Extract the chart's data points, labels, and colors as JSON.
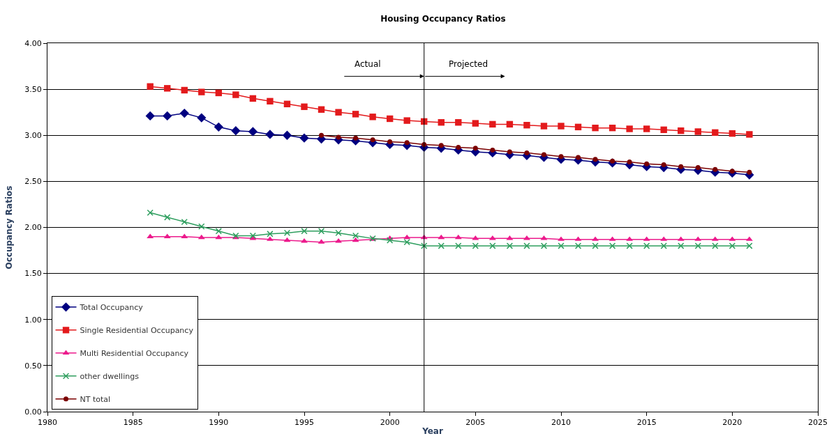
{
  "chart_data": {
    "type": "line",
    "title": "Housing Occupancy Ratios",
    "xlabel": "Year",
    "ylabel": "Occupancy Ratios",
    "x": [
      1986,
      1987,
      1988,
      1989,
      1990,
      1991,
      1992,
      1993,
      1994,
      1995,
      1996,
      1997,
      1998,
      1999,
      2000,
      2001,
      2002,
      2003,
      2004,
      2005,
      2006,
      2007,
      2008,
      2009,
      2010,
      2011,
      2012,
      2013,
      2014,
      2015,
      2016,
      2017,
      2018,
      2019,
      2020,
      2021
    ],
    "series": [
      {
        "name": "Total Occupancy",
        "color": "#000080",
        "marker": "diamond",
        "values": [
          3.21,
          3.21,
          3.24,
          3.19,
          3.09,
          3.05,
          3.04,
          3.01,
          3.0,
          2.97,
          2.96,
          2.95,
          2.94,
          2.92,
          2.9,
          2.89,
          2.87,
          2.86,
          2.84,
          2.82,
          2.81,
          2.79,
          2.78,
          2.76,
          2.74,
          2.73,
          2.71,
          2.7,
          2.68,
          2.66,
          2.65,
          2.63,
          2.62,
          2.6,
          2.59,
          2.57
        ]
      },
      {
        "name": "Single Residential Occupancy",
        "color": "#e31a1c",
        "marker": "square",
        "values": [
          3.53,
          3.51,
          3.49,
          3.47,
          3.46,
          3.44,
          3.4,
          3.37,
          3.34,
          3.31,
          3.28,
          3.25,
          3.23,
          3.2,
          3.18,
          3.16,
          3.15,
          3.14,
          3.14,
          3.13,
          3.12,
          3.12,
          3.11,
          3.1,
          3.1,
          3.09,
          3.08,
          3.08,
          3.07,
          3.07,
          3.06,
          3.05,
          3.04,
          3.03,
          3.02,
          3.01
        ]
      },
      {
        "name": "Multi Residential Occupancy",
        "color": "#ec1a8c",
        "marker": "triangle",
        "values": [
          1.9,
          1.9,
          1.9,
          1.89,
          1.89,
          1.89,
          1.88,
          1.87,
          1.86,
          1.85,
          1.84,
          1.85,
          1.86,
          1.87,
          1.88,
          1.89,
          1.89,
          1.89,
          1.89,
          1.88,
          1.88,
          1.88,
          1.88,
          1.88,
          1.87,
          1.87,
          1.87,
          1.87,
          1.87,
          1.87,
          1.87,
          1.87,
          1.87,
          1.87,
          1.87,
          1.87
        ]
      },
      {
        "name": "other dwellings",
        "color": "#2e9e5e",
        "marker": "cross",
        "values": [
          2.16,
          2.11,
          2.06,
          2.01,
          1.96,
          1.91,
          1.91,
          1.93,
          1.94,
          1.96,
          1.96,
          1.94,
          1.91,
          1.88,
          1.86,
          1.84,
          1.8,
          1.8,
          1.8,
          1.8,
          1.8,
          1.8,
          1.8,
          1.8,
          1.8,
          1.8,
          1.8,
          1.8,
          1.8,
          1.8,
          1.8,
          1.8,
          1.8,
          1.8,
          1.8,
          1.8
        ]
      },
      {
        "name": "NT total",
        "color": "#7b0000",
        "marker": "circle",
        "values": [
          null,
          null,
          null,
          null,
          null,
          null,
          null,
          null,
          null,
          null,
          3.0,
          2.98,
          2.97,
          2.95,
          2.93,
          2.92,
          2.9,
          2.89,
          2.87,
          2.86,
          2.84,
          2.82,
          2.81,
          2.79,
          2.77,
          2.76,
          2.74,
          2.72,
          2.71,
          2.69,
          2.68,
          2.66,
          2.65,
          2.63,
          2.61,
          2.6
        ]
      }
    ],
    "xlim": [
      1980,
      2025
    ],
    "xticks": [
      1980,
      1985,
      1990,
      1995,
      2000,
      2005,
      2010,
      2015,
      2020,
      2025
    ],
    "ylim": [
      0,
      4
    ],
    "yticks": [
      {
        "value": 0,
        "label": "0.00"
      },
      {
        "value": 0.5,
        "label": "0.50"
      },
      {
        "value": 1,
        "label": "1.00"
      },
      {
        "value": 1.5,
        "label": "1.50"
      },
      {
        "value": 2,
        "label": "2.00"
      },
      {
        "value": 2.5,
        "label": "2.50"
      },
      {
        "value": 3,
        "label": "3.00"
      },
      {
        "value": 3.5,
        "label": "3.50"
      },
      {
        "value": 4,
        "label": "4.00"
      }
    ],
    "ref_lines": [
      {
        "axis": "x",
        "value": 2002,
        "color": "#000000"
      }
    ],
    "annotations": [
      "Actual",
      "Projected"
    ],
    "grid": "y",
    "legend": "bottom left",
    "line_style": "solid"
  }
}
